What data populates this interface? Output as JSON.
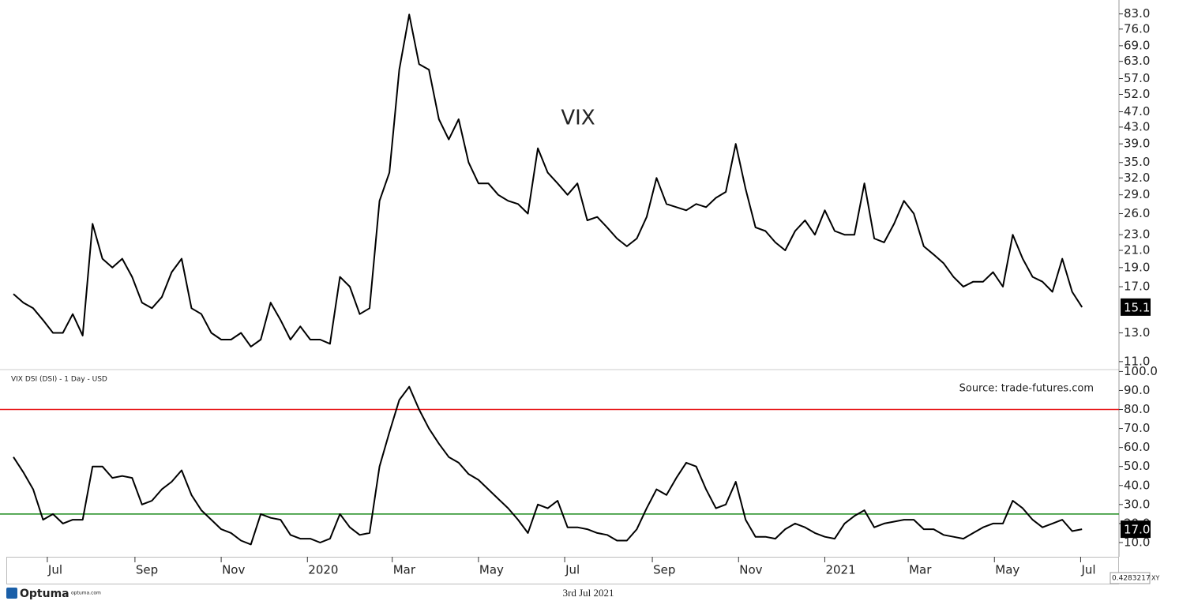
{
  "chart_data": [
    {
      "type": "line",
      "log_scale": true,
      "annotation": "VIX",
      "xlim": [
        "2019-06-02",
        "2021-07-27"
      ],
      "ylim": [
        10.5,
        90
      ],
      "yticks": [
        {
          "value": 11,
          "label": "11.0"
        },
        {
          "value": 13,
          "label": "13.0"
        },
        {
          "value": 17,
          "label": "17.0"
        },
        {
          "value": 19,
          "label": "19.0"
        },
        {
          "value": 21,
          "label": "21.0"
        },
        {
          "value": 23,
          "label": "23.0"
        },
        {
          "value": 26,
          "label": "26.0"
        },
        {
          "value": 29,
          "label": "29.0"
        },
        {
          "value": 32,
          "label": "32.0"
        },
        {
          "value": 35,
          "label": "35.0"
        },
        {
          "value": 39,
          "label": "39.0"
        },
        {
          "value": 43,
          "label": "43.0"
        },
        {
          "value": 47,
          "label": "47.0"
        },
        {
          "value": 52,
          "label": "52.0"
        },
        {
          "value": 57,
          "label": "57.0"
        },
        {
          "value": 63,
          "label": "63.0"
        },
        {
          "value": 69,
          "label": "69.0"
        },
        {
          "value": 76,
          "label": "76.0"
        },
        {
          "value": 83,
          "label": "83.0"
        }
      ],
      "last_value_label": "15.1",
      "x": [
        "2019-06-07",
        "2019-06-14",
        "2019-06-21",
        "2019-06-28",
        "2019-07-05",
        "2019-07-12",
        "2019-07-19",
        "2019-07-26",
        "2019-08-02",
        "2019-08-09",
        "2019-08-16",
        "2019-08-23",
        "2019-08-30",
        "2019-09-06",
        "2019-09-13",
        "2019-09-20",
        "2019-09-27",
        "2019-10-04",
        "2019-10-11",
        "2019-10-18",
        "2019-10-25",
        "2019-11-01",
        "2019-11-08",
        "2019-11-15",
        "2019-11-22",
        "2019-11-29",
        "2019-12-06",
        "2019-12-13",
        "2019-12-20",
        "2019-12-27",
        "2020-01-03",
        "2020-01-10",
        "2020-01-17",
        "2020-01-24",
        "2020-01-31",
        "2020-02-07",
        "2020-02-14",
        "2020-02-21",
        "2020-02-28",
        "2020-03-06",
        "2020-03-13",
        "2020-03-20",
        "2020-03-27",
        "2020-04-03",
        "2020-04-10",
        "2020-04-17",
        "2020-04-24",
        "2020-05-01",
        "2020-05-08",
        "2020-05-15",
        "2020-05-22",
        "2020-05-29",
        "2020-06-05",
        "2020-06-12",
        "2020-06-19",
        "2020-06-26",
        "2020-07-03",
        "2020-07-10",
        "2020-07-17",
        "2020-07-24",
        "2020-07-31",
        "2020-08-07",
        "2020-08-14",
        "2020-08-21",
        "2020-08-28",
        "2020-09-04",
        "2020-09-11",
        "2020-09-18",
        "2020-09-25",
        "2020-10-02",
        "2020-10-09",
        "2020-10-16",
        "2020-10-23",
        "2020-10-30",
        "2020-11-06",
        "2020-11-13",
        "2020-11-20",
        "2020-11-27",
        "2020-12-04",
        "2020-12-11",
        "2020-12-18",
        "2020-12-25",
        "2021-01-01",
        "2021-01-08",
        "2021-01-15",
        "2021-01-22",
        "2021-01-29",
        "2021-02-05",
        "2021-02-12",
        "2021-02-19",
        "2021-02-26",
        "2021-03-05",
        "2021-03-12",
        "2021-03-19",
        "2021-03-26",
        "2021-04-02",
        "2021-04-09",
        "2021-04-16",
        "2021-04-23",
        "2021-04-30",
        "2021-05-07",
        "2021-05-14",
        "2021-05-21",
        "2021-05-28",
        "2021-06-04",
        "2021-06-11",
        "2021-06-18",
        "2021-06-25",
        "2021-07-02"
      ],
      "series": [
        {
          "name": "VIX",
          "color": "#000000",
          "values": [
            16.3,
            15.5,
            15,
            14,
            13,
            13,
            14.5,
            12.8,
            24.5,
            20,
            19,
            20,
            18,
            15.5,
            15,
            16,
            18.5,
            20,
            15,
            14.5,
            13,
            12.5,
            12.5,
            13,
            12,
            12.5,
            15.5,
            14,
            12.5,
            13.5,
            12.5,
            12.5,
            12.2,
            18,
            17,
            14.5,
            15,
            28,
            33,
            60,
            82.7,
            62,
            60,
            45,
            40,
            45,
            35,
            31,
            31,
            29,
            28,
            27.5,
            26,
            38,
            33,
            31,
            29,
            31,
            25,
            25.5,
            24,
            22.5,
            21.5,
            22.5,
            25.5,
            32,
            27.5,
            27,
            26.5,
            27.5,
            27,
            28.5,
            29.5,
            39,
            30,
            24,
            23.5,
            22,
            21,
            23.5,
            25,
            23,
            26.5,
            23.5,
            23,
            23,
            31,
            22.5,
            22,
            24.5,
            28,
            26,
            21.5,
            20.5,
            19.5,
            18,
            17,
            17.5,
            17.5,
            18.5,
            17,
            23,
            20,
            18,
            17.5,
            16.5,
            20,
            16.5,
            15.1
          ]
        }
      ]
    },
    {
      "type": "line",
      "title": "VIX DSI (DSI) - 1 Day - USD",
      "source": "Source: trade-futures.com",
      "xlim": [
        "2019-06-02",
        "2021-07-27"
      ],
      "ylim": [
        2.5,
        101
      ],
      "xticks": [
        {
          "value": "2019-07-01",
          "label": "Jul"
        },
        {
          "value": "2019-09-01",
          "label": "Sep"
        },
        {
          "value": "2019-11-01",
          "label": "Nov"
        },
        {
          "value": "2020-01-01",
          "label": "2020"
        },
        {
          "value": "2020-03-01",
          "label": "Mar"
        },
        {
          "value": "2020-05-01",
          "label": "May"
        },
        {
          "value": "2020-07-01",
          "label": "Jul"
        },
        {
          "value": "2020-09-01",
          "label": "Sep"
        },
        {
          "value": "2020-11-01",
          "label": "Nov"
        },
        {
          "value": "2021-01-01",
          "label": "2021"
        },
        {
          "value": "2021-03-01",
          "label": "Mar"
        },
        {
          "value": "2021-05-01",
          "label": "May"
        },
        {
          "value": "2021-07-01",
          "label": "Jul"
        }
      ],
      "yticks": [
        {
          "value": 10,
          "label": "10.0"
        },
        {
          "value": 20,
          "label": "20.0"
        },
        {
          "value": 30,
          "label": "30.0"
        },
        {
          "value": 40,
          "label": "40.0"
        },
        {
          "value": 50,
          "label": "50.0"
        },
        {
          "value": 60,
          "label": "60.0"
        },
        {
          "value": 70,
          "label": "70.0"
        },
        {
          "value": 80,
          "label": "80.0"
        },
        {
          "value": 90,
          "label": "90.0"
        },
        {
          "value": 100,
          "label": "100.0"
        }
      ],
      "reference_lines": [
        {
          "value": 80,
          "color": "#e8191b"
        },
        {
          "value": 25,
          "color": "#1a8a1a"
        }
      ],
      "last_value_label": "17.0",
      "x": [
        "2019-06-07",
        "2019-06-14",
        "2019-06-21",
        "2019-06-28",
        "2019-07-05",
        "2019-07-12",
        "2019-07-19",
        "2019-07-26",
        "2019-08-02",
        "2019-08-09",
        "2019-08-16",
        "2019-08-23",
        "2019-08-30",
        "2019-09-06",
        "2019-09-13",
        "2019-09-20",
        "2019-09-27",
        "2019-10-04",
        "2019-10-11",
        "2019-10-18",
        "2019-10-25",
        "2019-11-01",
        "2019-11-08",
        "2019-11-15",
        "2019-11-22",
        "2019-11-29",
        "2019-12-06",
        "2019-12-13",
        "2019-12-20",
        "2019-12-27",
        "2020-01-03",
        "2020-01-10",
        "2020-01-17",
        "2020-01-24",
        "2020-01-31",
        "2020-02-07",
        "2020-02-14",
        "2020-02-21",
        "2020-02-28",
        "2020-03-06",
        "2020-03-13",
        "2020-03-20",
        "2020-03-27",
        "2020-04-03",
        "2020-04-10",
        "2020-04-17",
        "2020-04-24",
        "2020-05-01",
        "2020-05-08",
        "2020-05-15",
        "2020-05-22",
        "2020-05-29",
        "2020-06-05",
        "2020-06-12",
        "2020-06-19",
        "2020-06-26",
        "2020-07-03",
        "2020-07-10",
        "2020-07-17",
        "2020-07-24",
        "2020-07-31",
        "2020-08-07",
        "2020-08-14",
        "2020-08-21",
        "2020-08-28",
        "2020-09-04",
        "2020-09-11",
        "2020-09-18",
        "2020-09-25",
        "2020-10-02",
        "2020-10-09",
        "2020-10-16",
        "2020-10-23",
        "2020-10-30",
        "2020-11-06",
        "2020-11-13",
        "2020-11-20",
        "2020-11-27",
        "2020-12-04",
        "2020-12-11",
        "2020-12-18",
        "2020-12-25",
        "2021-01-01",
        "2021-01-08",
        "2021-01-15",
        "2021-01-22",
        "2021-01-29",
        "2021-02-05",
        "2021-02-12",
        "2021-02-19",
        "2021-02-26",
        "2021-03-05",
        "2021-03-12",
        "2021-03-19",
        "2021-03-26",
        "2021-04-02",
        "2021-04-09",
        "2021-04-16",
        "2021-04-23",
        "2021-04-30",
        "2021-05-07",
        "2021-05-14",
        "2021-05-21",
        "2021-05-28",
        "2021-06-04",
        "2021-06-11",
        "2021-06-18",
        "2021-06-25",
        "2021-07-02"
      ],
      "series": [
        {
          "name": "VIX DSI",
          "color": "#000000",
          "values": [
            55,
            47,
            38,
            22,
            25,
            20,
            22,
            22,
            50,
            50,
            44,
            45,
            44,
            30,
            32,
            38,
            42,
            48,
            35,
            27,
            22,
            17,
            15,
            11,
            9,
            25,
            23,
            22,
            14,
            12,
            12,
            10,
            12,
            25,
            18,
            14,
            15,
            50,
            68,
            85,
            92,
            80,
            70,
            62,
            55,
            52,
            46,
            43,
            38,
            33,
            28,
            22,
            15,
            30,
            28,
            32,
            18,
            18,
            17,
            15,
            14,
            11,
            11,
            17,
            28,
            38,
            35,
            44,
            52,
            50,
            38,
            28,
            30,
            42,
            22,
            13,
            13,
            12,
            17,
            20,
            18,
            15,
            13,
            12,
            20,
            24,
            27,
            18,
            20,
            21,
            22,
            22,
            17,
            17,
            14,
            13,
            12,
            15,
            18,
            20,
            20,
            32,
            28,
            22,
            18,
            20,
            22,
            16,
            17
          ]
        }
      ]
    }
  ],
  "footer": {
    "logo": "Optuma",
    "site": "optuma.com",
    "date": "3rd Jul 2021",
    "coords": "0.4283217",
    "xy": "XY"
  }
}
